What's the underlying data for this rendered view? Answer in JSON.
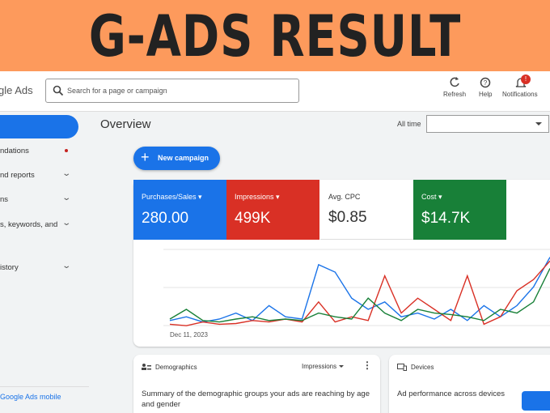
{
  "banner": {
    "title": "G-ADS RESULT"
  },
  "header": {
    "logo": "gle Ads",
    "search": "Search for a page or campaign",
    "actions": [
      "Refresh",
      "Help",
      "Notifications"
    ],
    "badge": "!"
  },
  "sidebar": {
    "items": [
      "ndations",
      "nd reports",
      "ns",
      "s, keywords, and",
      "istory"
    ],
    "footer": "Google Ads mobile"
  },
  "overview": {
    "title": "Overview",
    "range_label": "All time",
    "button": "New campaign",
    "metrics": [
      {
        "label": "Purchases/Sales",
        "value": "280.00"
      },
      {
        "label": "Impressions",
        "value": "499K"
      },
      {
        "label": "Avg. CPC",
        "value": "$0.85"
      },
      {
        "label": "Cost",
        "value": "$14.7K"
      }
    ]
  },
  "chart_data": {
    "type": "line",
    "x_label": "Dec 11, 2023",
    "ylim": [
      0,
      100
    ],
    "series": [
      {
        "color": "#1a73e8",
        "values": [
          10,
          15,
          8,
          12,
          20,
          10,
          30,
          15,
          12,
          85,
          75,
          40,
          25,
          35,
          15,
          20,
          12,
          25,
          10,
          30,
          15,
          30,
          55,
          95
        ]
      },
      {
        "color": "#d93025",
        "values": [
          5,
          3,
          8,
          5,
          6,
          10,
          8,
          12,
          8,
          35,
          8,
          15,
          10,
          70,
          20,
          40,
          25,
          10,
          70,
          5,
          15,
          50,
          65,
          90
        ]
      },
      {
        "color": "#188038",
        "values": [
          12,
          25,
          10,
          8,
          12,
          15,
          10,
          12,
          10,
          20,
          15,
          12,
          40,
          20,
          10,
          25,
          20,
          18,
          15,
          10,
          25,
          20,
          35,
          80
        ]
      }
    ]
  },
  "cards": [
    {
      "title": "Demographics",
      "control": "Impressions",
      "text": "Summary of the demographic groups your ads are reaching by age and gender"
    },
    {
      "title": "Devices",
      "text": "Ad performance across devices"
    }
  ]
}
